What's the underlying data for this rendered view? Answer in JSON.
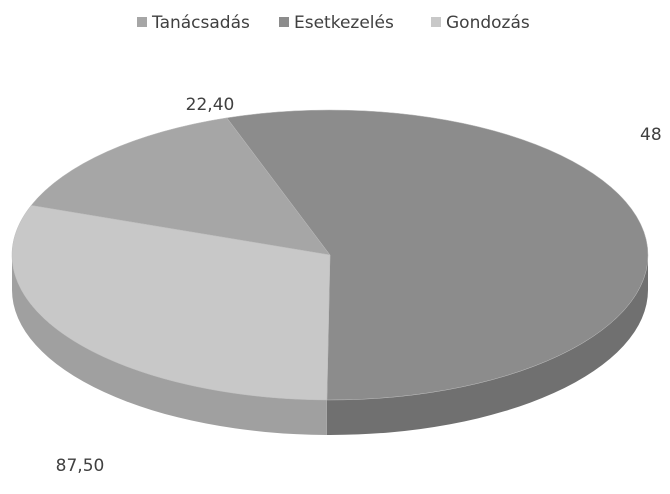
{
  "chart_data": {
    "type": "pie3d",
    "categories": [
      "Tanácsadás",
      "Esetkezelés",
      "Gondozás"
    ],
    "values": [
      22.4,
      87.5,
      48
    ],
    "value_labels": [
      "22,40",
      "87,50",
      "48"
    ],
    "colors": [
      "#a6a6a6",
      "#8c8c8c",
      "#c8c8c8"
    ],
    "legend": "top"
  }
}
